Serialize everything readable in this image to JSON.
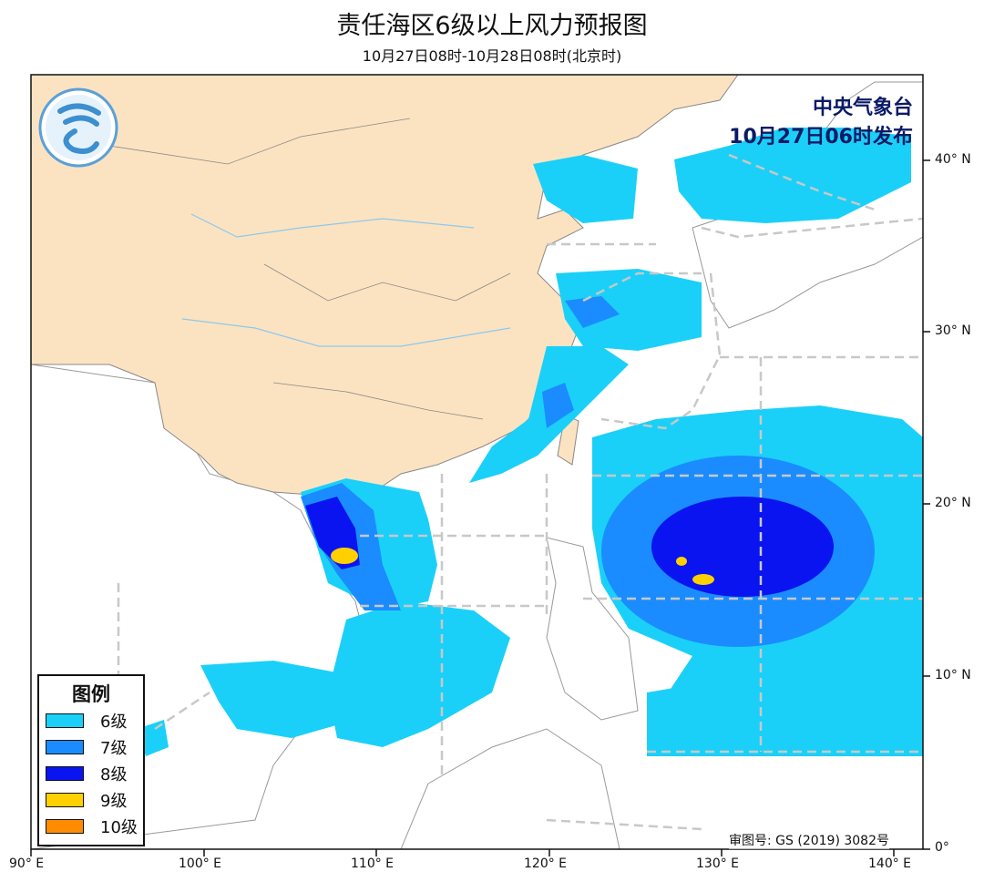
{
  "title": "责任海区6级以上风力预报图",
  "subtitle": "10月27日08时-10月28日08时(北京时)",
  "issuer": {
    "line1": "中央气象台",
    "line2": "10月27日06时发布"
  },
  "legend": {
    "title": "图例",
    "items": [
      {
        "label": "6级",
        "color": "#1ad0f8"
      },
      {
        "label": "7级",
        "color": "#1a8cff"
      },
      {
        "label": "8级",
        "color": "#0a14f0"
      },
      {
        "label": "9级",
        "color": "#ffd000"
      },
      {
        "label": "10级",
        "color": "#ff8c00"
      }
    ]
  },
  "axes": {
    "lon_labels": [
      "90° E",
      "100° E",
      "110° E",
      "120° E",
      "130° E",
      "140° E"
    ],
    "lat_labels": [
      "0°",
      "10° N",
      "20° N",
      "30° N",
      "40° N"
    ]
  },
  "review_number": "审图号: GS (2019) 3082号",
  "colors": {
    "land_china": "#fbe3c2",
    "sea": "#ffffff",
    "boundary_dash": "#c8c8c8"
  },
  "logo": "cma-logo"
}
